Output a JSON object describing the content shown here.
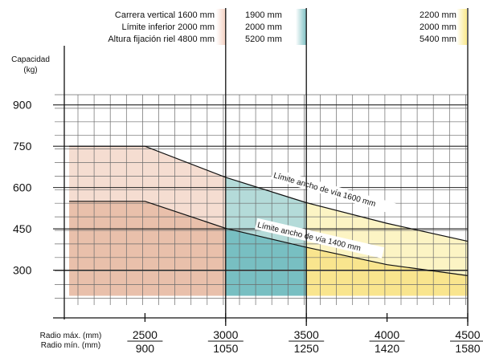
{
  "chart_data": {
    "type": "area",
    "ylabel": "Capacidad\n(kg)",
    "yticks": [
      300,
      450,
      600,
      750,
      900
    ],
    "ylim": [
      150,
      975
    ],
    "xlim": [
      2000,
      4500
    ],
    "x_ticks_max": [
      "2500",
      "3000",
      "3500",
      "4000",
      "4500"
    ],
    "x_ticks_min": [
      "900",
      "1050",
      "1250",
      "1420",
      "1580"
    ],
    "xlabel_max": "Radio máx. (mm)",
    "xlabel_min": "Radio mín. (mm)",
    "configurations": [
      {
        "lines": [
          "Carrera vertical 1600 mm",
          "Límite inferior 2000 mm",
          "Altura fijación riel 4800 mm"
        ],
        "color": "#f5cfc0",
        "x_range": [
          2000,
          3000
        ]
      },
      {
        "lines": [
          "1900 mm",
          "2000 mm",
          "5200 mm"
        ],
        "color": "#7fc1c4",
        "x_range": [
          3000,
          3500
        ]
      },
      {
        "lines": [
          "2200 mm",
          "2000 mm",
          "5400 mm"
        ],
        "color": "#fbe98a",
        "x_range": [
          3500,
          4500
        ]
      }
    ],
    "series": [
      {
        "name": "Límite ancho de vía 1600 mm",
        "x": [
          2030,
          2500,
          3000,
          3500,
          4000,
          4500
        ],
        "y": [
          750,
          750,
          637,
          545,
          470,
          405
        ]
      },
      {
        "name": "Límite ancho de vía 1400 mm",
        "x": [
          2030,
          2500,
          3000,
          3500,
          4000,
          4500
        ],
        "y": [
          550,
          550,
          452,
          383,
          320,
          280
        ]
      }
    ],
    "colors": {
      "light_salmon": "#f5ddd1",
      "dark_salmon": "#e9c0ab",
      "light_teal": "#b4dbd9",
      "dark_teal": "#78bfc2",
      "light_yellow": "#fcf4c4",
      "dark_yellow": "#f9e58e",
      "grid": "#6b6b6b"
    }
  }
}
